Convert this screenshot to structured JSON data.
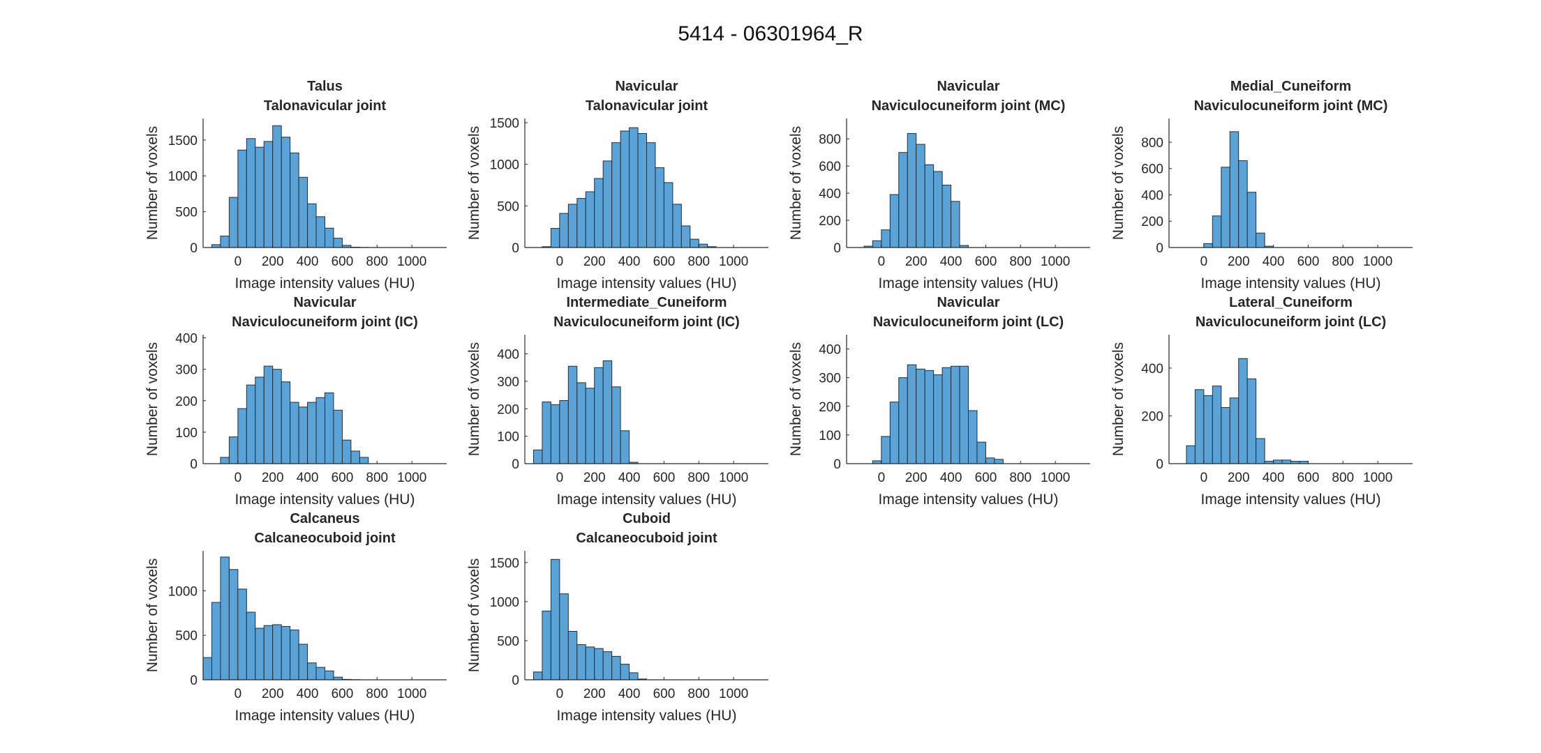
{
  "figure": {
    "title": "5414 - 06301964_R"
  },
  "chart_data": [
    {
      "type": "bar",
      "title": [
        "Talus",
        "Talonavicular joint"
      ],
      "xlabel": "Image intensity values (HU)",
      "ylabel": "Number of voxels",
      "xlim": [
        -200,
        1200
      ],
      "ylim": [
        0,
        1800
      ],
      "xticks": [
        0,
        200,
        400,
        600,
        800,
        1000
      ],
      "yticks": [
        0,
        500,
        1000,
        1500
      ],
      "bin_start": -150,
      "bin_width": 50,
      "values": [
        40,
        160,
        700,
        1360,
        1520,
        1400,
        1480,
        1700,
        1540,
        1320,
        980,
        610,
        430,
        270,
        130,
        30,
        5,
        2
      ]
    },
    {
      "type": "bar",
      "title": [
        "Navicular",
        "Talonavicular joint"
      ],
      "xlabel": "Image intensity values (HU)",
      "ylabel": "Number of voxels",
      "xlim": [
        -200,
        1200
      ],
      "ylim": [
        0,
        1550
      ],
      "xticks": [
        0,
        200,
        400,
        600,
        800,
        1000
      ],
      "yticks": [
        0,
        500,
        1000,
        1500
      ],
      "bin_start": -100,
      "bin_width": 50,
      "values": [
        10,
        230,
        410,
        520,
        590,
        670,
        830,
        1040,
        1260,
        1400,
        1440,
        1370,
        1260,
        960,
        780,
        520,
        260,
        100,
        40,
        10
      ]
    },
    {
      "type": "bar",
      "title": [
        "Navicular",
        "Naviculocuneiform joint (MC)"
      ],
      "xlabel": "Image intensity values (HU)",
      "ylabel": "Number of voxels",
      "xlim": [
        -200,
        1200
      ],
      "ylim": [
        0,
        950
      ],
      "xticks": [
        0,
        200,
        400,
        600,
        800,
        1000
      ],
      "yticks": [
        0,
        200,
        400,
        600,
        800
      ],
      "bin_start": -100,
      "bin_width": 50,
      "values": [
        10,
        50,
        130,
        390,
        700,
        840,
        760,
        610,
        560,
        460,
        340,
        15
      ]
    },
    {
      "type": "bar",
      "title": [
        "Medial_Cuneiform",
        "Naviculocuneiform joint (MC)"
      ],
      "xlabel": "Image intensity values (HU)",
      "ylabel": "Number of voxels",
      "xlim": [
        -200,
        1200
      ],
      "ylim": [
        0,
        980
      ],
      "xticks": [
        0,
        200,
        400,
        600,
        800,
        1000
      ],
      "yticks": [
        0,
        200,
        400,
        600,
        800
      ],
      "bin_start": 0,
      "bin_width": 50,
      "values": [
        30,
        240,
        610,
        880,
        660,
        420,
        110,
        10
      ]
    },
    {
      "type": "bar",
      "title": [
        "Navicular",
        "Naviculocuneiform joint (IC)"
      ],
      "xlabel": "Image intensity values (HU)",
      "ylabel": "Number of voxels",
      "xlim": [
        -200,
        1200
      ],
      "ylim": [
        0,
        410
      ],
      "xticks": [
        0,
        200,
        400,
        600,
        800,
        1000
      ],
      "yticks": [
        0,
        100,
        200,
        300,
        400
      ],
      "bin_start": -100,
      "bin_width": 50,
      "values": [
        20,
        85,
        175,
        250,
        275,
        310,
        300,
        260,
        195,
        180,
        195,
        210,
        225,
        170,
        75,
        40,
        20
      ]
    },
    {
      "type": "bar",
      "title": [
        "Intermediate_Cuneiform",
        "Naviculocuneiform joint (IC)"
      ],
      "xlabel": "Image intensity values (HU)",
      "ylabel": "Number of voxels",
      "xlim": [
        -200,
        1200
      ],
      "ylim": [
        0,
        470
      ],
      "xticks": [
        0,
        200,
        400,
        600,
        800,
        1000
      ],
      "yticks": [
        0,
        100,
        200,
        300,
        400
      ],
      "bin_start": -150,
      "bin_width": 50,
      "values": [
        50,
        225,
        215,
        230,
        355,
        295,
        275,
        350,
        375,
        280,
        120,
        5
      ]
    },
    {
      "type": "bar",
      "title": [
        "Navicular",
        "Naviculocuneiform joint (LC)"
      ],
      "xlabel": "Image intensity values (HU)",
      "ylabel": "Number of voxels",
      "xlim": [
        -200,
        1200
      ],
      "ylim": [
        0,
        450
      ],
      "xticks": [
        0,
        200,
        400,
        600,
        800,
        1000
      ],
      "yticks": [
        0,
        100,
        200,
        300,
        400
      ],
      "bin_start": -50,
      "bin_width": 50,
      "values": [
        10,
        95,
        215,
        300,
        345,
        330,
        325,
        310,
        335,
        340,
        340,
        185,
        75,
        20,
        15
      ]
    },
    {
      "type": "bar",
      "title": [
        "Lateral_Cuneiform",
        "Naviculocuneiform joint (LC)"
      ],
      "xlabel": "Image intensity values (HU)",
      "ylabel": "Number of voxels",
      "xlim": [
        -200,
        1200
      ],
      "ylim": [
        0,
        540
      ],
      "xticks": [
        0,
        200,
        400,
        600,
        800,
        1000
      ],
      "yticks": [
        0,
        200,
        400
      ],
      "bin_start": -100,
      "bin_width": 50,
      "values": [
        75,
        310,
        285,
        325,
        235,
        275,
        440,
        355,
        105,
        10,
        15,
        15,
        10,
        10
      ]
    },
    {
      "type": "bar",
      "title": [
        "Calcaneus",
        "Calcaneocuboid joint"
      ],
      "xlabel": "Image intensity values (HU)",
      "ylabel": "Number of voxels",
      "xlim": [
        -200,
        1200
      ],
      "ylim": [
        0,
        1450
      ],
      "xticks": [
        0,
        200,
        400,
        600,
        800,
        1000
      ],
      "yticks": [
        0,
        500,
        1000
      ],
      "bin_start": -200,
      "bin_width": 50,
      "values": [
        250,
        870,
        1380,
        1240,
        1020,
        760,
        580,
        610,
        620,
        600,
        560,
        400,
        190,
        140,
        100,
        30,
        5,
        2
      ]
    },
    {
      "type": "bar",
      "title": [
        "Cuboid",
        "Calcaneocuboid joint"
      ],
      "xlabel": "Image intensity values (HU)",
      "ylabel": "Number of voxels",
      "xlim": [
        -200,
        1200
      ],
      "ylim": [
        0,
        1650
      ],
      "xticks": [
        0,
        200,
        400,
        600,
        800,
        1000
      ],
      "yticks": [
        0,
        500,
        1000,
        1500
      ],
      "bin_start": -150,
      "bin_width": 50,
      "values": [
        100,
        880,
        1540,
        1100,
        620,
        450,
        420,
        400,
        360,
        300,
        200,
        90,
        10
      ]
    }
  ]
}
